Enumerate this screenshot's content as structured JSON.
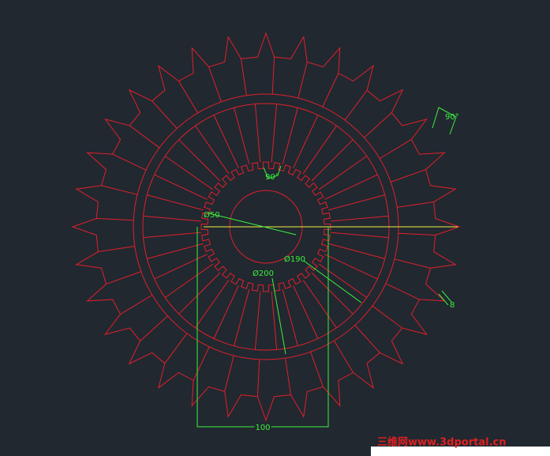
{
  "annotations": {
    "angle_outer": "90°",
    "angle_inner": "90°",
    "dia_hub": "Ø50",
    "dia_ring": "Ø190",
    "dia_gear": "Ø200",
    "thickness": "8",
    "width": "100"
  },
  "watermark": "三维网www.3dportal.cn"
}
